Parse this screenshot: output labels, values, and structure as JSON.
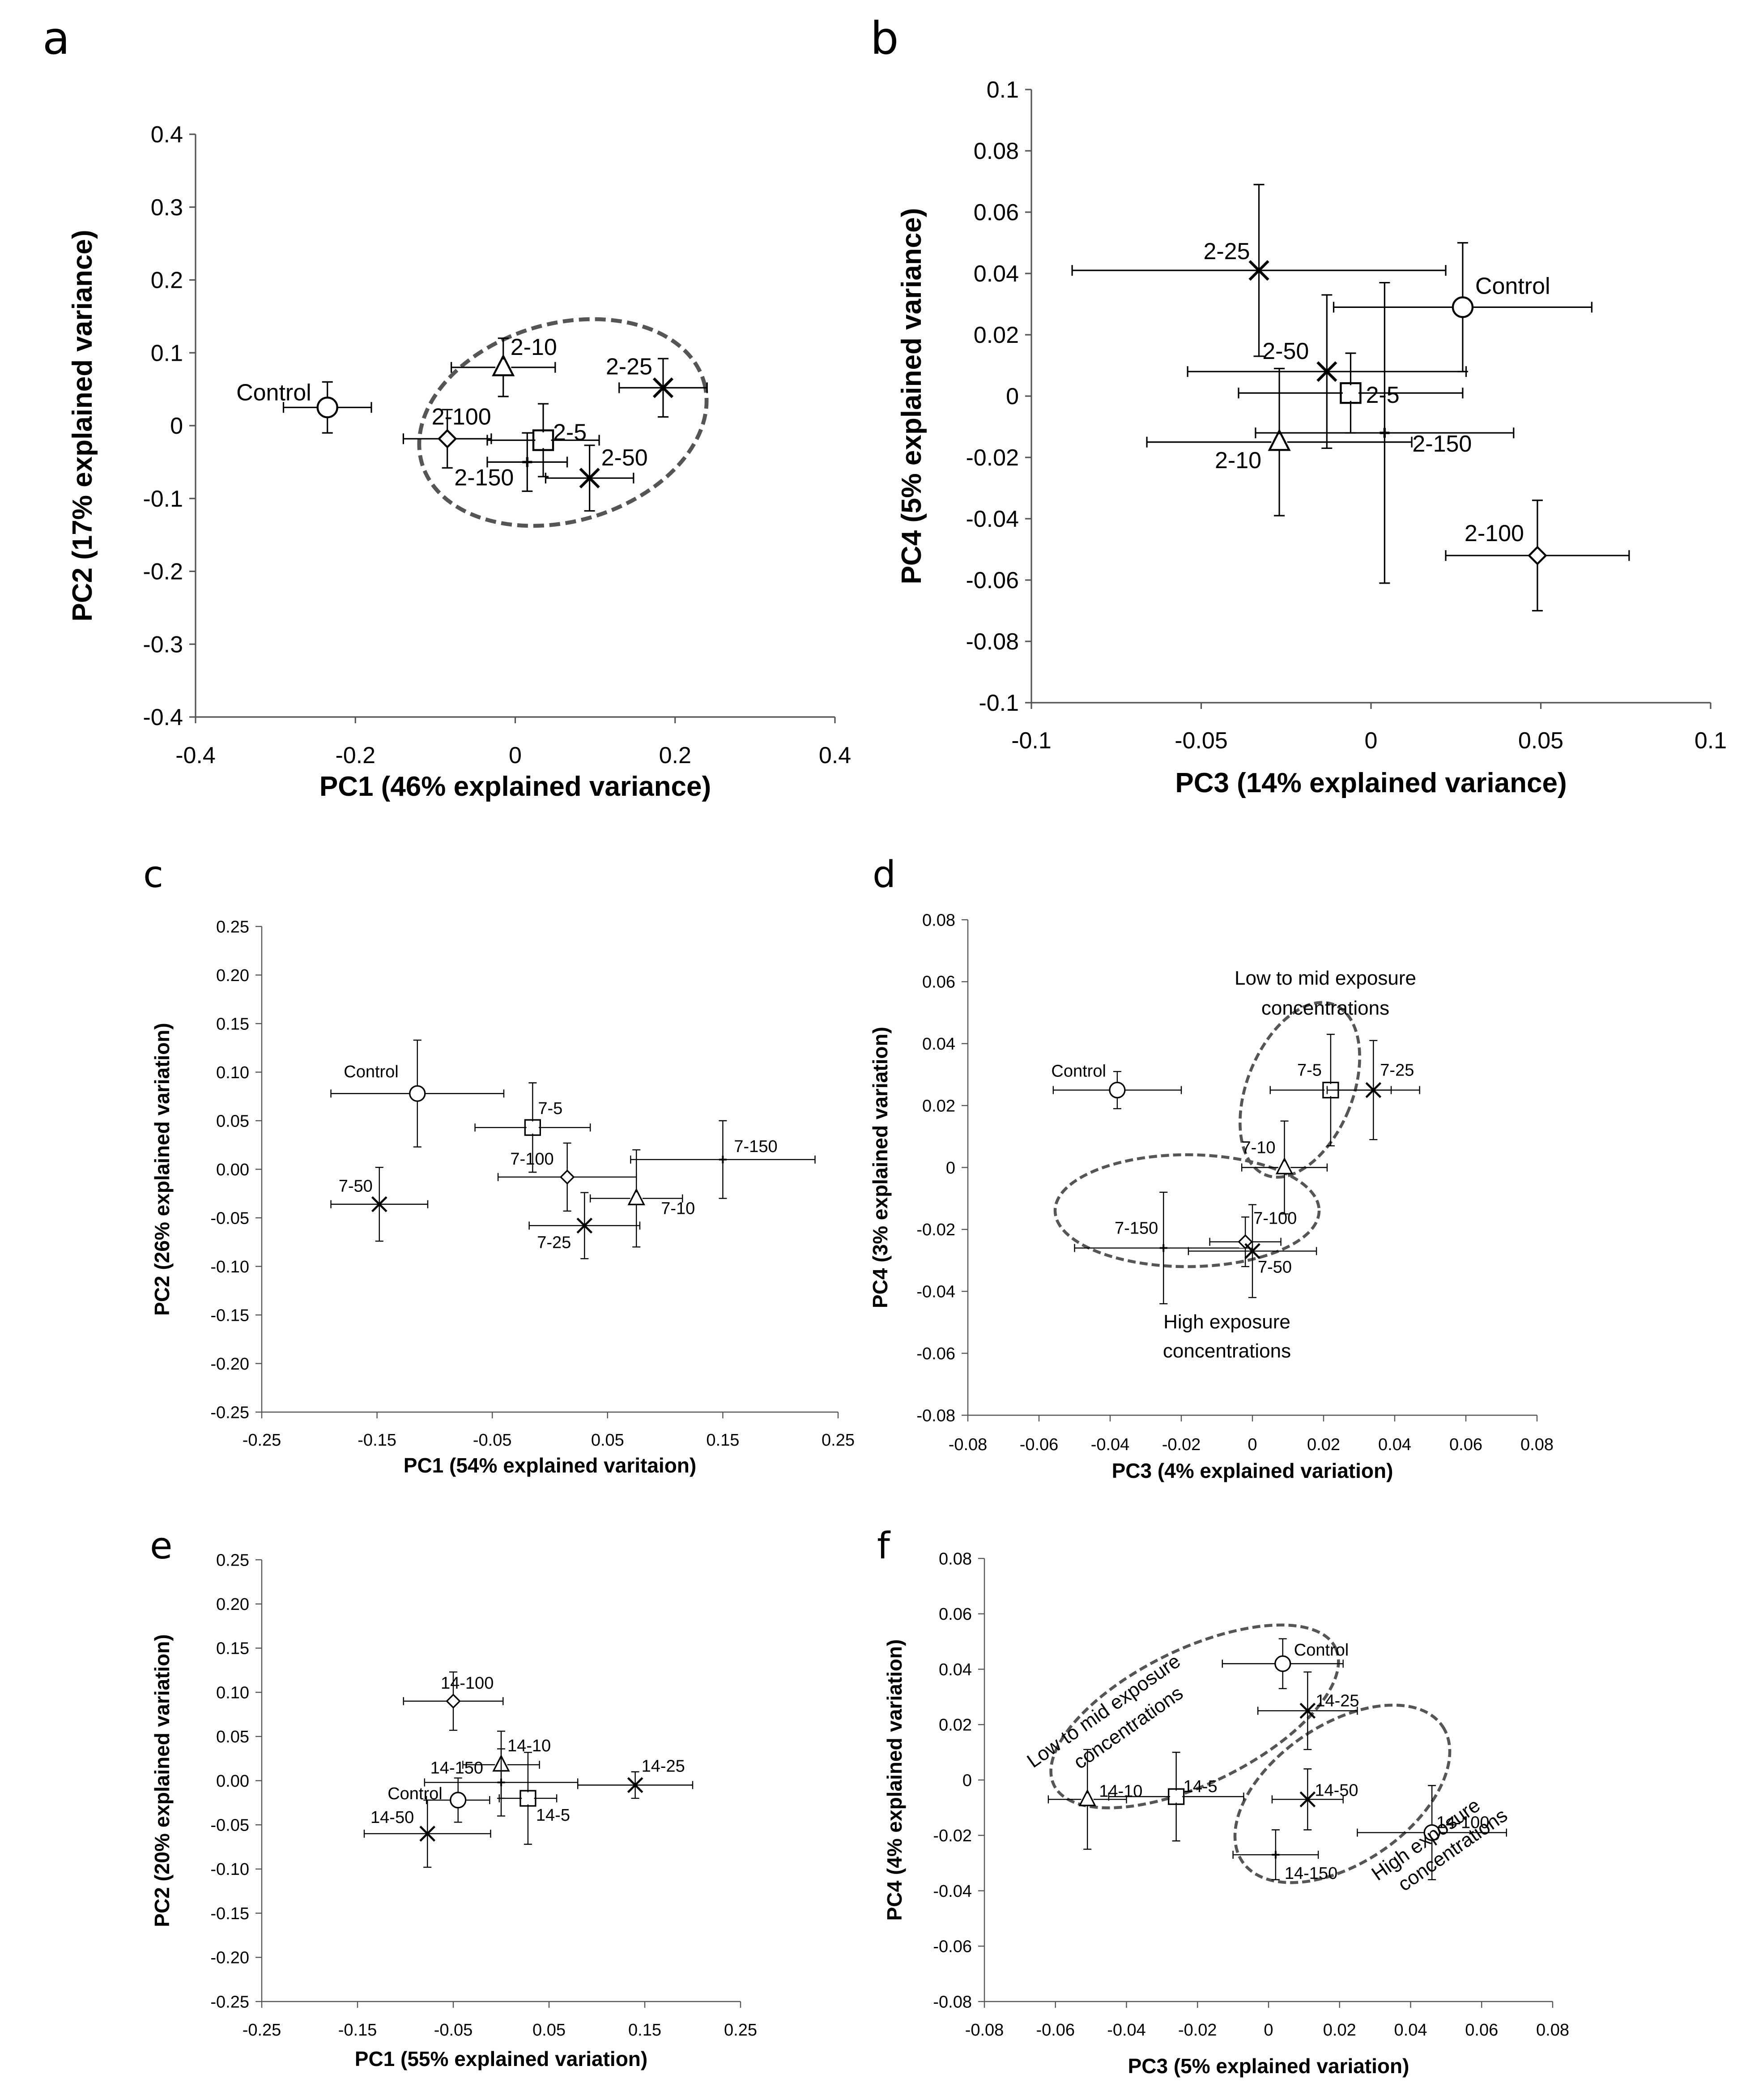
{
  "figure": {
    "type": "multi-panel PCA score plots"
  },
  "chart_data": [
    {
      "panel": "a",
      "type": "scatter",
      "xlabel": "PC1 (46% explained variance)",
      "ylabel": "PC2 (17% explained variance)",
      "xlim": [
        -0.4,
        0.4
      ],
      "ylim": [
        -0.4,
        0.4
      ],
      "xticks": [
        "-0.4",
        "-0.2",
        "0",
        "0.2",
        "0.4"
      ],
      "yticks": [
        "-0.4",
        "-0.3",
        "-0.2",
        "-0.1",
        "0",
        "0.1",
        "0.2",
        "0.3",
        "0.4"
      ],
      "points": [
        {
          "label": "Control",
          "marker": "circle",
          "x": -0.235,
          "y": 0.025,
          "xerr": 0.055,
          "yerr": 0.035
        },
        {
          "label": "2-10",
          "marker": "triangle",
          "x": -0.015,
          "y": 0.08,
          "xerr": 0.065,
          "yerr": 0.04
        },
        {
          "label": "2-25",
          "marker": "x",
          "x": 0.185,
          "y": 0.052,
          "xerr": 0.055,
          "yerr": 0.04
        },
        {
          "label": "2-100",
          "marker": "diamond",
          "x": -0.085,
          "y": -0.018,
          "xerr": 0.055,
          "yerr": 0.04
        },
        {
          "label": "2-5",
          "marker": "square",
          "x": 0.035,
          "y": -0.02,
          "xerr": 0.07,
          "yerr": 0.05
        },
        {
          "label": "2-150",
          "marker": "plus",
          "x": 0.015,
          "y": -0.05,
          "xerr": 0.05,
          "yerr": 0.04
        },
        {
          "label": "2-50",
          "marker": "x",
          "x": 0.093,
          "y": -0.072,
          "xerr": 0.055,
          "yerr": 0.045
        }
      ]
    },
    {
      "panel": "b",
      "type": "scatter",
      "xlabel": "PC3 (14% explained variance)",
      "ylabel": "PC4 (5% explained variance)",
      "xlim": [
        -0.1,
        0.1
      ],
      "ylim": [
        -0.1,
        0.1
      ],
      "xticks": [
        "-0.1",
        "-0.05",
        "0",
        "0.05",
        "0.1"
      ],
      "yticks": [
        "-0.1",
        "-0.08",
        "-0.06",
        "-0.04",
        "-0.02",
        "0",
        "0.02",
        "0.04",
        "0.06",
        "0.08",
        "0.1"
      ],
      "points": [
        {
          "label": "Control",
          "marker": "circle",
          "x": 0.027,
          "y": 0.029,
          "xerr": 0.038,
          "yerr": 0.021
        },
        {
          "label": "2-25",
          "marker": "x",
          "x": -0.033,
          "y": 0.041,
          "xerr": 0.055,
          "yerr": 0.028
        },
        {
          "label": "2-50",
          "marker": "x",
          "x": -0.013,
          "y": 0.008,
          "xerr": 0.041,
          "yerr": 0.025
        },
        {
          "label": "2-5",
          "marker": "square",
          "x": -0.006,
          "y": 0.001,
          "xerr": 0.033,
          "yerr": 0.013
        },
        {
          "label": "2-10",
          "marker": "triangle",
          "x": -0.027,
          "y": -0.015,
          "xerr": 0.039,
          "yerr": 0.024
        },
        {
          "label": "2-150",
          "marker": "plus",
          "x": 0.004,
          "y": -0.012,
          "xerr": 0.038,
          "yerr": 0.049
        },
        {
          "label": "2-100",
          "marker": "diamond",
          "x": 0.049,
          "y": -0.052,
          "xerr": 0.027,
          "yerr": 0.018
        }
      ]
    },
    {
      "panel": "c",
      "type": "scatter",
      "xlabel": "PC1 (54% explained varitaion)",
      "ylabel": "PC2 (26% explained variation)",
      "xlim": [
        -0.25,
        0.25
      ],
      "ylim": [
        -0.25,
        0.25
      ],
      "xticks": [
        "-0.25",
        "-0.15",
        "-0.05",
        "0.05",
        "0.15",
        "0.25"
      ],
      "yticks": [
        "-0.25",
        "-0.20",
        "-0.15",
        "-0.10",
        "-0.05",
        "0.00",
        "0.05",
        "0.10",
        "0.15",
        "0.20",
        "0.25"
      ],
      "points": [
        {
          "label": "Control",
          "marker": "circle",
          "x": -0.115,
          "y": 0.078,
          "xerr": 0.075,
          "yerr": 0.055
        },
        {
          "label": "7-5",
          "marker": "square",
          "x": -0.015,
          "y": 0.043,
          "xerr": 0.05,
          "yerr": 0.046
        },
        {
          "label": "7-150",
          "marker": "plus",
          "x": 0.15,
          "y": 0.01,
          "xerr": 0.08,
          "yerr": 0.04
        },
        {
          "label": "7-100",
          "marker": "diamond",
          "x": 0.015,
          "y": -0.008,
          "xerr": 0.06,
          "yerr": 0.035
        },
        {
          "label": "7-10",
          "marker": "triangle",
          "x": 0.075,
          "y": -0.03,
          "xerr": 0.04,
          "yerr": 0.05
        },
        {
          "label": "7-25",
          "marker": "x",
          "x": 0.03,
          "y": -0.058,
          "xerr": 0.048,
          "yerr": 0.034
        },
        {
          "label": "7-50",
          "marker": "x",
          "x": -0.148,
          "y": -0.036,
          "xerr": 0.042,
          "yerr": 0.038
        }
      ]
    },
    {
      "panel": "d",
      "type": "scatter",
      "xlabel": "PC3 (4% explained variation)",
      "ylabel": "PC4 (3% explained variation)",
      "xlim": [
        -0.08,
        0.08
      ],
      "ylim": [
        -0.08,
        0.08
      ],
      "xticks": [
        "-0.08",
        "-0.06",
        "-0.04",
        "-0.02",
        "0",
        "0.02",
        "0.04",
        "0.06",
        "0.08"
      ],
      "yticks": [
        "-0.08",
        "-0.06",
        "-0.04",
        "-0.02",
        "0",
        "0.02",
        "0.04",
        "0.06",
        "0.08"
      ],
      "points": [
        {
          "label": "Control",
          "marker": "circle",
          "x": -0.038,
          "y": 0.025,
          "xerr": 0.018,
          "yerr": 0.006
        },
        {
          "label": "7-5",
          "marker": "square",
          "x": 0.022,
          "y": 0.025,
          "xerr": 0.017,
          "yerr": 0.018
        },
        {
          "label": "7-25",
          "marker": "x",
          "x": 0.034,
          "y": 0.025,
          "xerr": 0.013,
          "yerr": 0.016
        },
        {
          "label": "7-10",
          "marker": "triangle",
          "x": 0.009,
          "y": 0.0,
          "xerr": 0.012,
          "yerr": 0.015
        },
        {
          "label": "7-150",
          "marker": "plus",
          "x": -0.025,
          "y": -0.026,
          "xerr": 0.025,
          "yerr": 0.018
        },
        {
          "label": "7-100",
          "marker": "diamond",
          "x": -0.002,
          "y": -0.024,
          "xerr": 0.01,
          "yerr": 0.008
        },
        {
          "label": "7-50",
          "marker": "x",
          "x": 0.0,
          "y": -0.027,
          "xerr": 0.018,
          "yerr": 0.015
        }
      ],
      "annotations": [
        "Low to mid exposure",
        "concentrations",
        "High exposure",
        "concentrations"
      ]
    },
    {
      "panel": "e",
      "type": "scatter",
      "xlabel": "PC1 (55% explained variation)",
      "ylabel": "PC2 (20% explained variation)",
      "xlim": [
        -0.25,
        0.25
      ],
      "ylim": [
        -0.25,
        0.25
      ],
      "xticks": [
        "-0.25",
        "-0.15",
        "-0.05",
        "0.05",
        "0.15",
        "0.25"
      ],
      "yticks": [
        "-0.25",
        "-0.20",
        "-0.15",
        "-0.10",
        "-0.05",
        "0.00",
        "0.05",
        "0.10",
        "0.15",
        "0.20",
        "0.25"
      ],
      "points": [
        {
          "label": "14-100",
          "marker": "diamond",
          "x": -0.05,
          "y": 0.09,
          "xerr": 0.052,
          "yerr": 0.033
        },
        {
          "label": "14-10",
          "marker": "triangle",
          "x": 0.0,
          "y": 0.018,
          "xerr": 0.04,
          "yerr": 0.038
        },
        {
          "label": "14-25",
          "marker": "x",
          "x": 0.14,
          "y": -0.005,
          "xerr": 0.06,
          "yerr": 0.015
        },
        {
          "label": "14-150",
          "marker": "plus",
          "x": 0.0,
          "y": -0.002,
          "xerr": 0.08,
          "yerr": 0.038
        },
        {
          "label": "Control",
          "marker": "circle",
          "x": -0.045,
          "y": -0.022,
          "xerr": 0.033,
          "yerr": 0.025
        },
        {
          "label": "14-5",
          "marker": "square",
          "x": 0.028,
          "y": -0.02,
          "xerr": 0.03,
          "yerr": 0.052
        },
        {
          "label": "14-50",
          "marker": "x",
          "x": -0.077,
          "y": -0.06,
          "xerr": 0.066,
          "yerr": 0.038
        }
      ]
    },
    {
      "panel": "f",
      "type": "scatter",
      "xlabel": "PC3 (5% explained variation)",
      "ylabel": "PC4 (4% explained variation)",
      "xlim": [
        -0.08,
        0.08
      ],
      "ylim": [
        -0.08,
        0.08
      ],
      "xticks": [
        "-0.08",
        "-0.06",
        "-0.04",
        "-0.02",
        "0",
        "0.02",
        "0.04",
        "0.06",
        "0.08"
      ],
      "yticks": [
        "-0.08",
        "-0.06",
        "-0.04",
        "-0.02",
        "0",
        "0.02",
        "0.04",
        "0.06",
        "0.08"
      ],
      "points": [
        {
          "label": "Control",
          "marker": "circle",
          "x": 0.004,
          "y": 0.042,
          "xerr": 0.017,
          "yerr": 0.009
        },
        {
          "label": "14-25",
          "marker": "x",
          "x": 0.011,
          "y": 0.025,
          "xerr": 0.014,
          "yerr": 0.014
        },
        {
          "label": "14-10",
          "marker": "triangle",
          "x": -0.051,
          "y": -0.007,
          "xerr": 0.011,
          "yerr": 0.018
        },
        {
          "label": "14-5",
          "marker": "square",
          "x": -0.026,
          "y": -0.006,
          "xerr": 0.019,
          "yerr": 0.016
        },
        {
          "label": "14-50",
          "marker": "x",
          "x": 0.011,
          "y": -0.007,
          "xerr": 0.01,
          "yerr": 0.011
        },
        {
          "label": "14-100",
          "marker": "circle",
          "x": 0.046,
          "y": -0.019,
          "xerr": 0.021,
          "yerr": 0.017
        },
        {
          "label": "14-150",
          "marker": "plus",
          "x": 0.002,
          "y": -0.027,
          "xerr": 0.012,
          "yerr": 0.009
        }
      ],
      "annotations": [
        "Low to mid exposure",
        "concentrations",
        "High exposure",
        "concentrations"
      ]
    }
  ]
}
